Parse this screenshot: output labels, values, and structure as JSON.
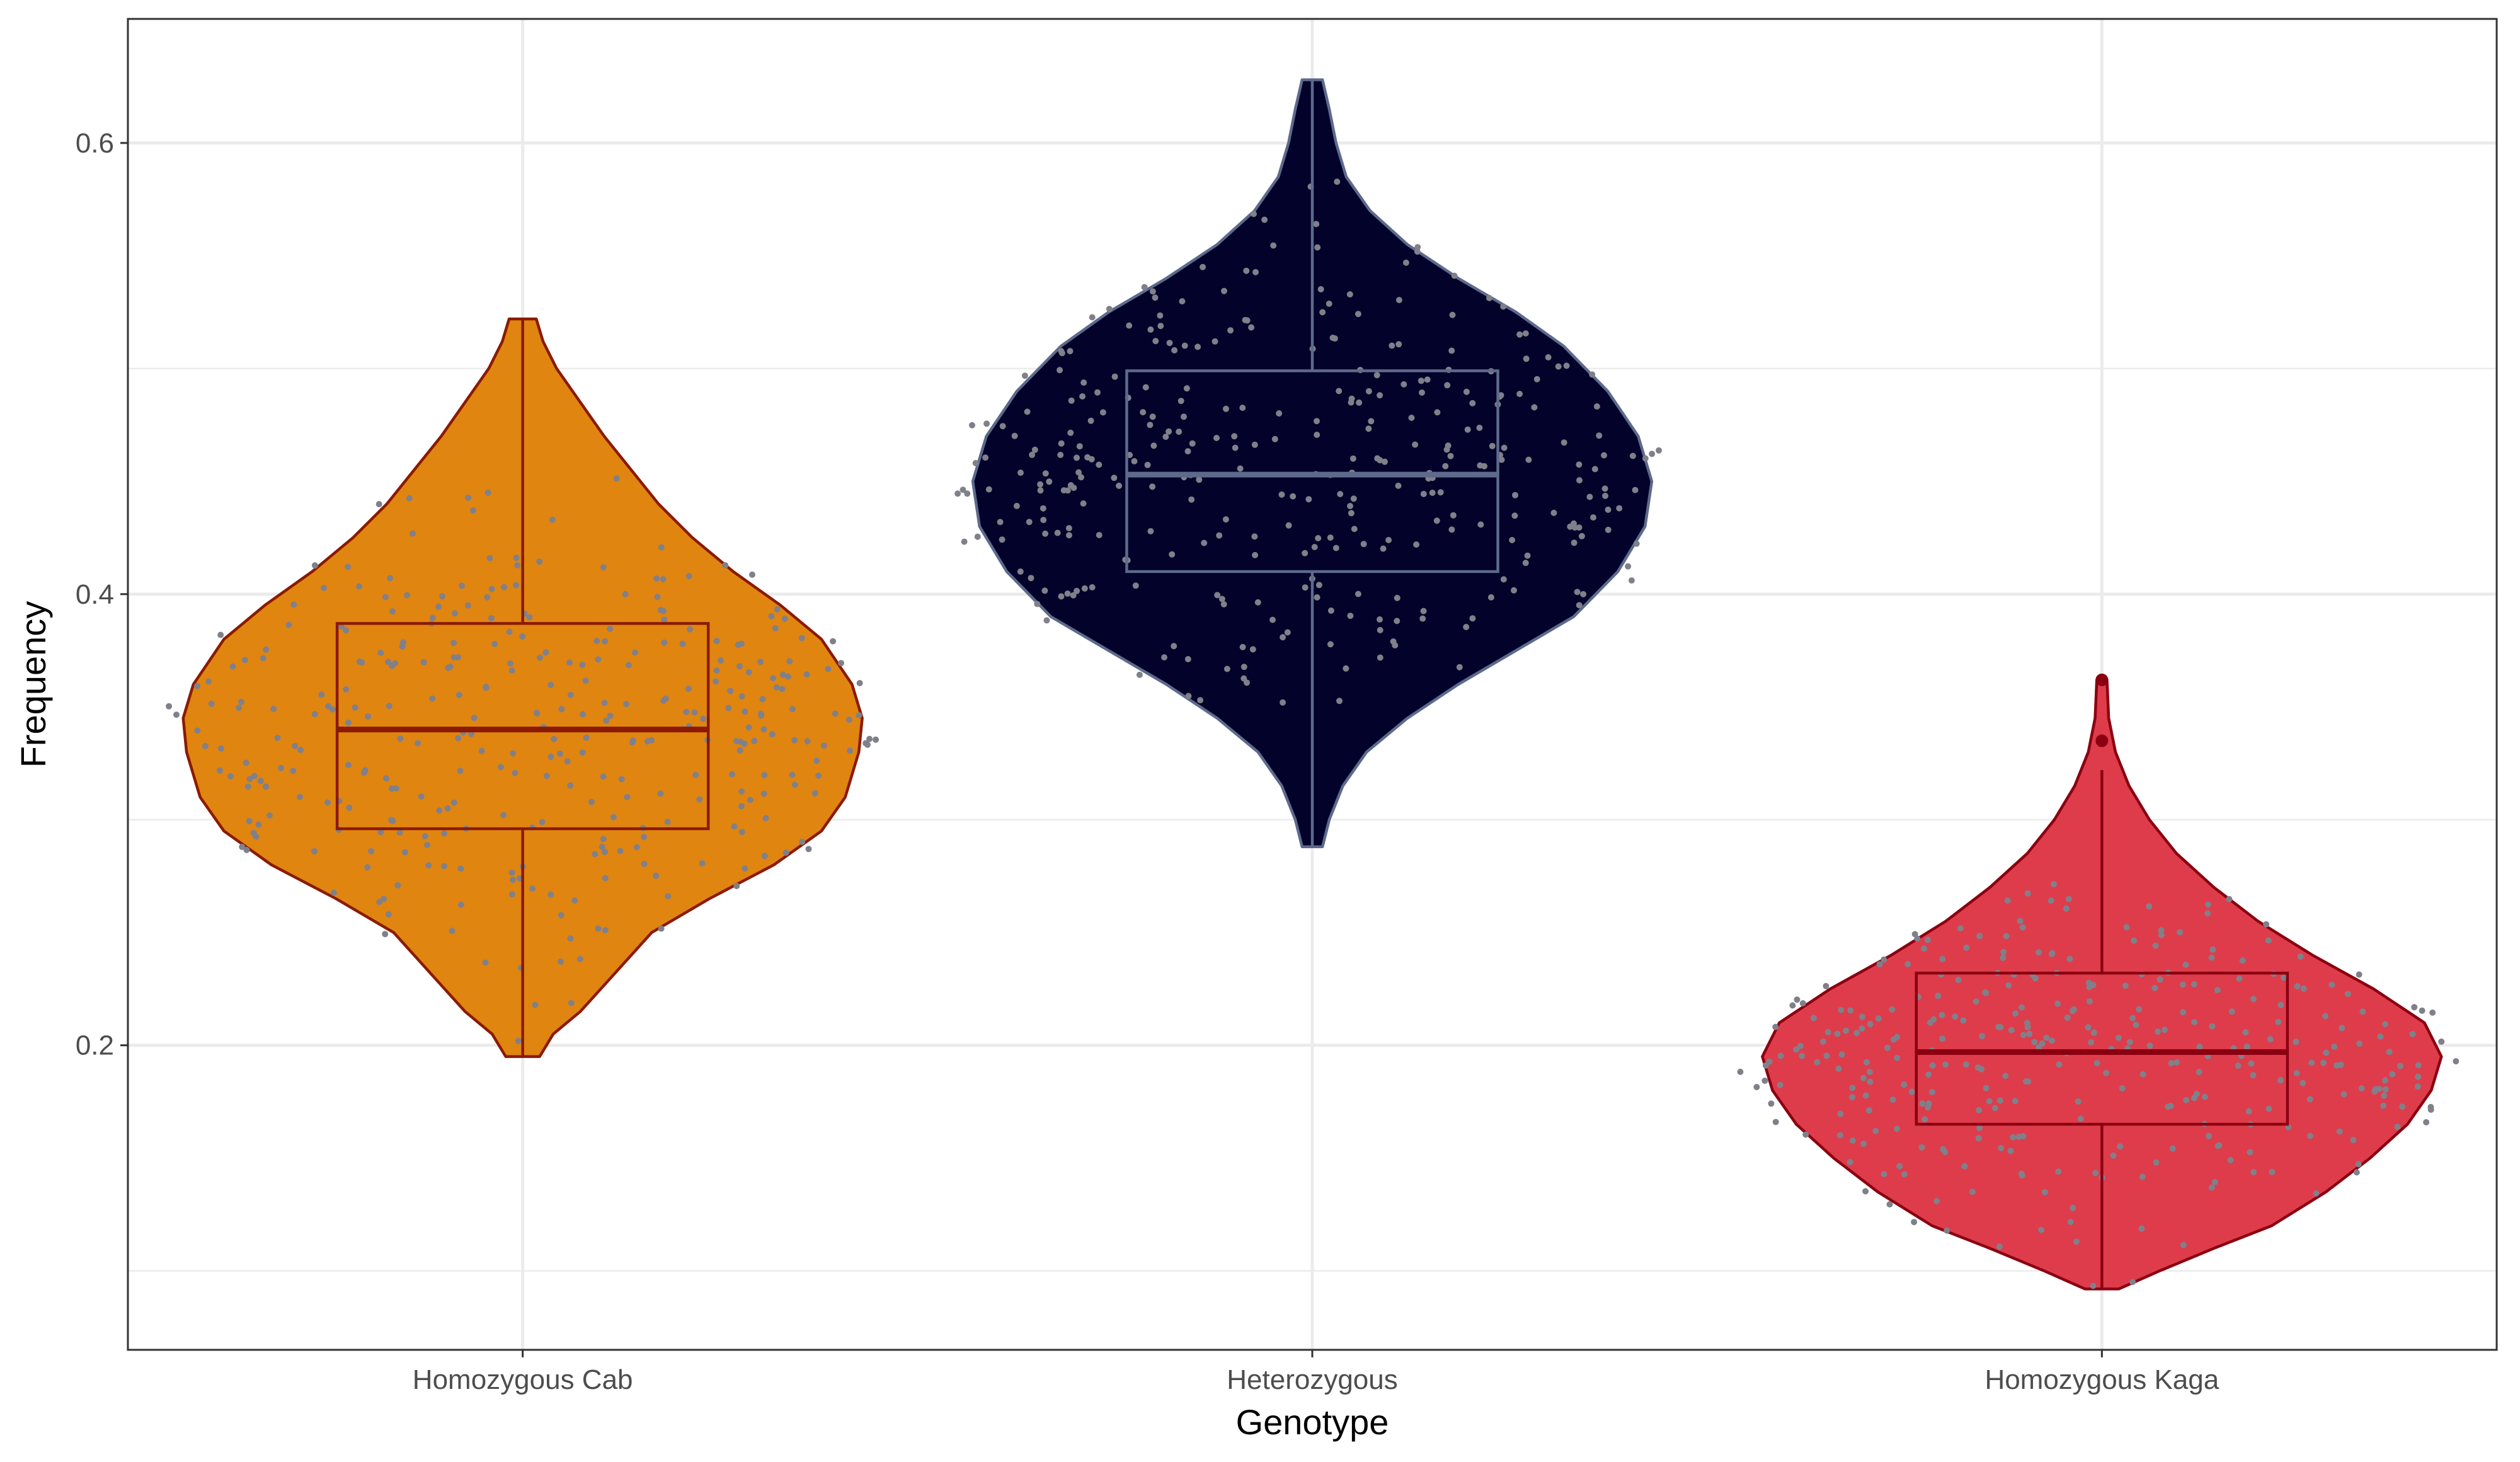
{
  "chart_data": {
    "type": "violin",
    "title": "",
    "xlabel": "Genotype",
    "ylabel": "Frequency",
    "ylim": [
      0.065,
      0.655
    ],
    "y_ticks": [
      0.2,
      0.4,
      0.6
    ],
    "y_minor_ticks": [
      0.1,
      0.3,
      0.5
    ],
    "grid": true,
    "legend": "none",
    "colors": {
      "point": "#80808a",
      "grid": "#ebebeb",
      "panel_border": "#333333"
    },
    "categories": [
      "Homozygous Cab",
      "Heterozygous",
      "Homozygous Kaga"
    ],
    "series": [
      {
        "category": "Homozygous Cab",
        "fill": "#e08510",
        "line": "#8b1a00",
        "box": {
          "q1": 0.296,
          "median": 0.34,
          "q3": 0.387,
          "whisker_low": 0.195,
          "whisker_high": 0.522
        },
        "outliers": [],
        "density": [
          [
            0.195,
            0.05
          ],
          [
            0.205,
            0.09
          ],
          [
            0.215,
            0.17
          ],
          [
            0.23,
            0.26
          ],
          [
            0.25,
            0.38
          ],
          [
            0.265,
            0.55
          ],
          [
            0.28,
            0.74
          ],
          [
            0.295,
            0.88
          ],
          [
            0.31,
            0.95
          ],
          [
            0.33,
            0.99
          ],
          [
            0.345,
            1.0
          ],
          [
            0.36,
            0.97
          ],
          [
            0.38,
            0.88
          ],
          [
            0.395,
            0.76
          ],
          [
            0.41,
            0.62
          ],
          [
            0.425,
            0.5
          ],
          [
            0.44,
            0.4
          ],
          [
            0.455,
            0.32
          ],
          [
            0.47,
            0.24
          ],
          [
            0.485,
            0.17
          ],
          [
            0.5,
            0.1
          ],
          [
            0.512,
            0.06
          ],
          [
            0.522,
            0.04
          ]
        ]
      },
      {
        "category": "Heterozygous",
        "fill": "#02022a",
        "line": "#5d6a8c",
        "box": {
          "q1": 0.41,
          "median": 0.453,
          "q3": 0.499,
          "whisker_low": 0.288,
          "whisker_high": 0.628
        },
        "outliers": [],
        "density": [
          [
            0.288,
            0.03
          ],
          [
            0.3,
            0.05
          ],
          [
            0.315,
            0.09
          ],
          [
            0.33,
            0.16
          ],
          [
            0.345,
            0.28
          ],
          [
            0.36,
            0.43
          ],
          [
            0.375,
            0.6
          ],
          [
            0.39,
            0.77
          ],
          [
            0.41,
            0.9
          ],
          [
            0.43,
            0.98
          ],
          [
            0.45,
            1.0
          ],
          [
            0.47,
            0.96
          ],
          [
            0.49,
            0.87
          ],
          [
            0.51,
            0.74
          ],
          [
            0.525,
            0.6
          ],
          [
            0.54,
            0.43
          ],
          [
            0.555,
            0.28
          ],
          [
            0.57,
            0.17
          ],
          [
            0.585,
            0.1
          ],
          [
            0.6,
            0.07
          ],
          [
            0.615,
            0.05
          ],
          [
            0.628,
            0.03
          ]
        ]
      },
      {
        "category": "Homozygous Kaga",
        "fill": "#de3c4b",
        "line": "#8b0010",
        "box": {
          "q1": 0.165,
          "median": 0.197,
          "q3": 0.232,
          "whisker_low": 0.092,
          "whisker_high": 0.322
        },
        "outliers": [
          0.335,
          0.362
        ],
        "density": [
          [
            0.092,
            0.05
          ],
          [
            0.1,
            0.17
          ],
          [
            0.11,
            0.33
          ],
          [
            0.12,
            0.5
          ],
          [
            0.135,
            0.66
          ],
          [
            0.15,
            0.79
          ],
          [
            0.165,
            0.9
          ],
          [
            0.18,
            0.97
          ],
          [
            0.195,
            1.0
          ],
          [
            0.21,
            0.95
          ],
          [
            0.225,
            0.8
          ],
          [
            0.24,
            0.62
          ],
          [
            0.255,
            0.46
          ],
          [
            0.27,
            0.33
          ],
          [
            0.285,
            0.22
          ],
          [
            0.3,
            0.14
          ],
          [
            0.315,
            0.08
          ],
          [
            0.33,
            0.04
          ],
          [
            0.345,
            0.02
          ],
          [
            0.362,
            0.015
          ]
        ]
      }
    ]
  }
}
